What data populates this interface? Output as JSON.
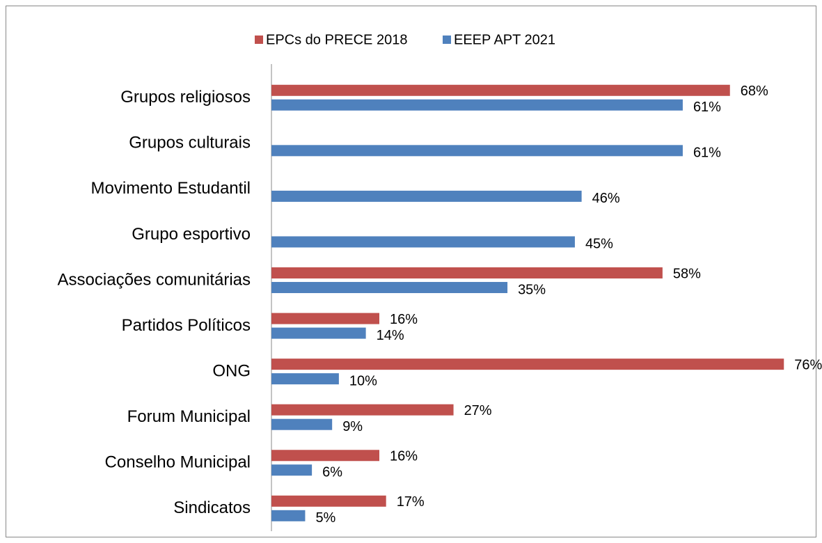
{
  "chart_data": {
    "type": "hbar",
    "categories": [
      "Grupos religiosos",
      "Grupos culturais",
      "Movimento Estudantil",
      "Grupo esportivo",
      "Associações comunitárias",
      "Partidos Políticos",
      "ONG",
      "Forum Municipal",
      "Conselho Municipal",
      "Sindicatos"
    ],
    "series": [
      {
        "name": "EPCs do PRECE 2018",
        "color": "#c0504d",
        "values": [
          68,
          null,
          null,
          null,
          58,
          16,
          76,
          27,
          16,
          17
        ],
        "value_labels": [
          "68%",
          null,
          null,
          null,
          "58%",
          "16%",
          "76%",
          "27%",
          "16%",
          "17%"
        ]
      },
      {
        "name": "EEEP APT 2021",
        "color": "#4f81bd",
        "values": [
          61,
          61,
          46,
          45,
          35,
          14,
          10,
          9,
          6,
          5
        ],
        "value_labels": [
          "61%",
          "61%",
          "46%",
          "45%",
          "35%",
          "14%",
          "10%",
          "9%",
          "6%",
          "5%"
        ]
      }
    ],
    "xlim": [
      0,
      80
    ],
    "legend": "top"
  }
}
